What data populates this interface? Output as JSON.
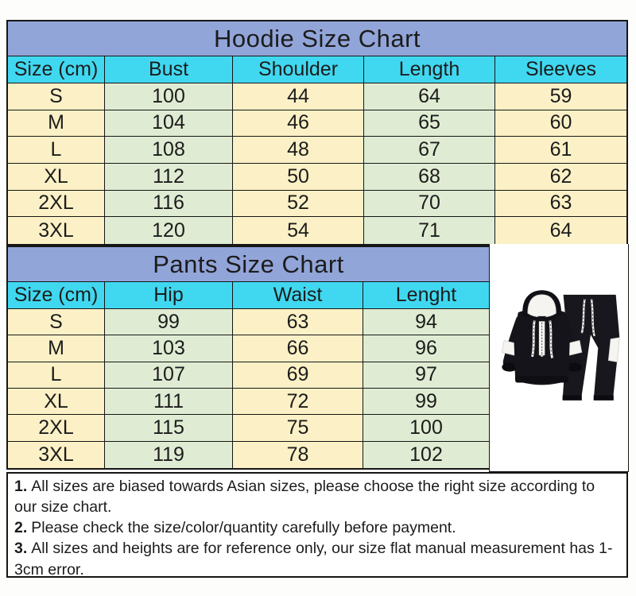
{
  "colors": {
    "title_bg": "#92a5d9",
    "header_bg": "#40d8f0",
    "cell_cream": "#fcf1c6",
    "cell_green": "#dfecd3",
    "grid": "#161616",
    "text": "#1c1c1c"
  },
  "chart_data": [
    {
      "type": "table",
      "title": "Hoodie Size Chart",
      "columns": [
        "Size (cm)",
        "Bust",
        "Shoulder",
        "Length",
        "Sleeves"
      ],
      "rows": [
        [
          "S",
          "100",
          "44",
          "64",
          "59"
        ],
        [
          "M",
          "104",
          "46",
          "65",
          "60"
        ],
        [
          "L",
          "108",
          "48",
          "67",
          "61"
        ],
        [
          "XL",
          "112",
          "50",
          "68",
          "62"
        ],
        [
          "2XL",
          "116",
          "52",
          "70",
          "63"
        ],
        [
          "3XL",
          "120",
          "54",
          "71",
          "64"
        ]
      ]
    },
    {
      "type": "table",
      "title": "Pants Size Chart",
      "columns": [
        "Size (cm)",
        "Hip",
        "Waist",
        "Lenght"
      ],
      "rows": [
        [
          "S",
          "99",
          "63",
          "94"
        ],
        [
          "M",
          "103",
          "66",
          "96"
        ],
        [
          "L",
          "107",
          "69",
          "97"
        ],
        [
          "XL",
          "111",
          "72",
          "99"
        ],
        [
          "2XL",
          "115",
          "75",
          "100"
        ],
        [
          "3XL",
          "119",
          "78",
          "102"
        ]
      ]
    }
  ],
  "notes": [
    {
      "num": "1.",
      "text": "All sizes are biased towards Asian sizes, please choose the right size according to our size chart."
    },
    {
      "num": "2.",
      "text": "Please check the size/color/quantity carefully before payment."
    },
    {
      "num": "3.",
      "text": "All sizes and heights are for reference only, our size flat manual measurement has 1-3cm error."
    }
  ],
  "product_image": {
    "label": "black and white hooded tracksuit set"
  }
}
